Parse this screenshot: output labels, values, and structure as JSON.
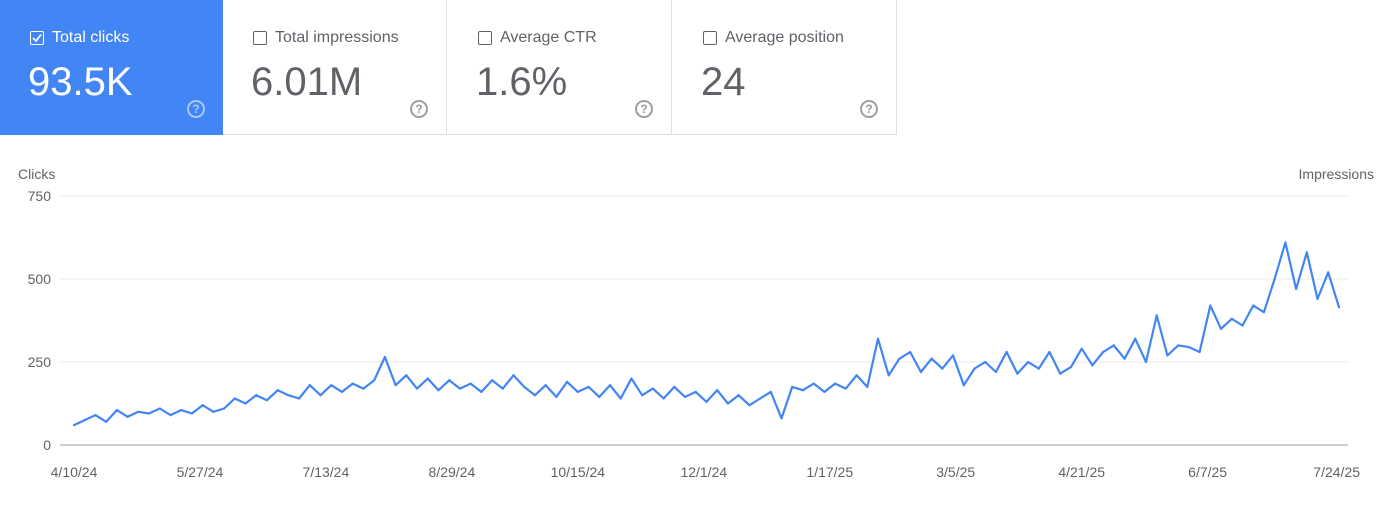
{
  "metrics": [
    {
      "label": "Total clicks",
      "value": "93.5K",
      "checked": true
    },
    {
      "label": "Total impressions",
      "value": "6.01M",
      "checked": false
    },
    {
      "label": "Average CTR",
      "value": "1.6%",
      "checked": false
    },
    {
      "label": "Average position",
      "value": "24",
      "checked": false
    }
  ],
  "help_glyph": "?",
  "colors": {
    "accent": "#4285f4",
    "line": "#4285f4",
    "grid": "#e8e8e8"
  },
  "chart_data": {
    "type": "line",
    "ylabel_left": "Clicks",
    "ylabel_right": "Impressions",
    "ylim": [
      0,
      750
    ],
    "yticks": [
      0,
      250,
      500,
      750
    ],
    "ytick_labels": [
      "0",
      "250",
      "500",
      "750"
    ],
    "grid": true,
    "start_date": "4/10/24",
    "x_step_days": 4,
    "xtick_labels": [
      "4/10/24",
      "5/27/24",
      "7/13/24",
      "8/29/24",
      "10/15/24",
      "12/1/24",
      "1/17/25",
      "3/5/25",
      "4/21/25",
      "6/7/25",
      "7/24/25"
    ],
    "xtick_days": [
      0,
      47,
      94,
      141,
      188,
      235,
      282,
      329,
      376,
      423,
      470
    ],
    "series": [
      {
        "values": [
          60,
          75,
          90,
          70,
          105,
          85,
          100,
          95,
          110,
          90,
          105,
          95,
          120,
          100,
          110,
          140,
          125,
          150,
          135,
          165,
          150,
          140,
          180,
          150,
          180,
          160,
          185,
          170,
          195,
          265,
          180,
          210,
          170,
          200,
          165,
          195,
          170,
          185,
          160,
          195,
          170,
          210,
          175,
          150,
          180,
          145,
          190,
          160,
          175,
          145,
          180,
          140,
          200,
          150,
          170,
          140,
          175,
          145,
          160,
          130,
          165,
          125,
          150,
          120,
          140,
          160,
          80,
          175,
          165,
          185,
          160,
          185,
          170,
          210,
          175,
          320,
          210,
          260,
          280,
          220,
          260,
          230,
          270,
          180,
          230,
          250,
          220,
          280,
          215,
          250,
          230,
          280,
          215,
          235,
          290,
          240,
          280,
          300,
          260,
          320,
          250,
          390,
          270,
          300,
          295,
          280,
          420,
          350,
          380,
          360,
          420,
          400,
          500,
          610,
          470,
          580,
          440,
          520,
          415
        ]
      }
    ]
  }
}
